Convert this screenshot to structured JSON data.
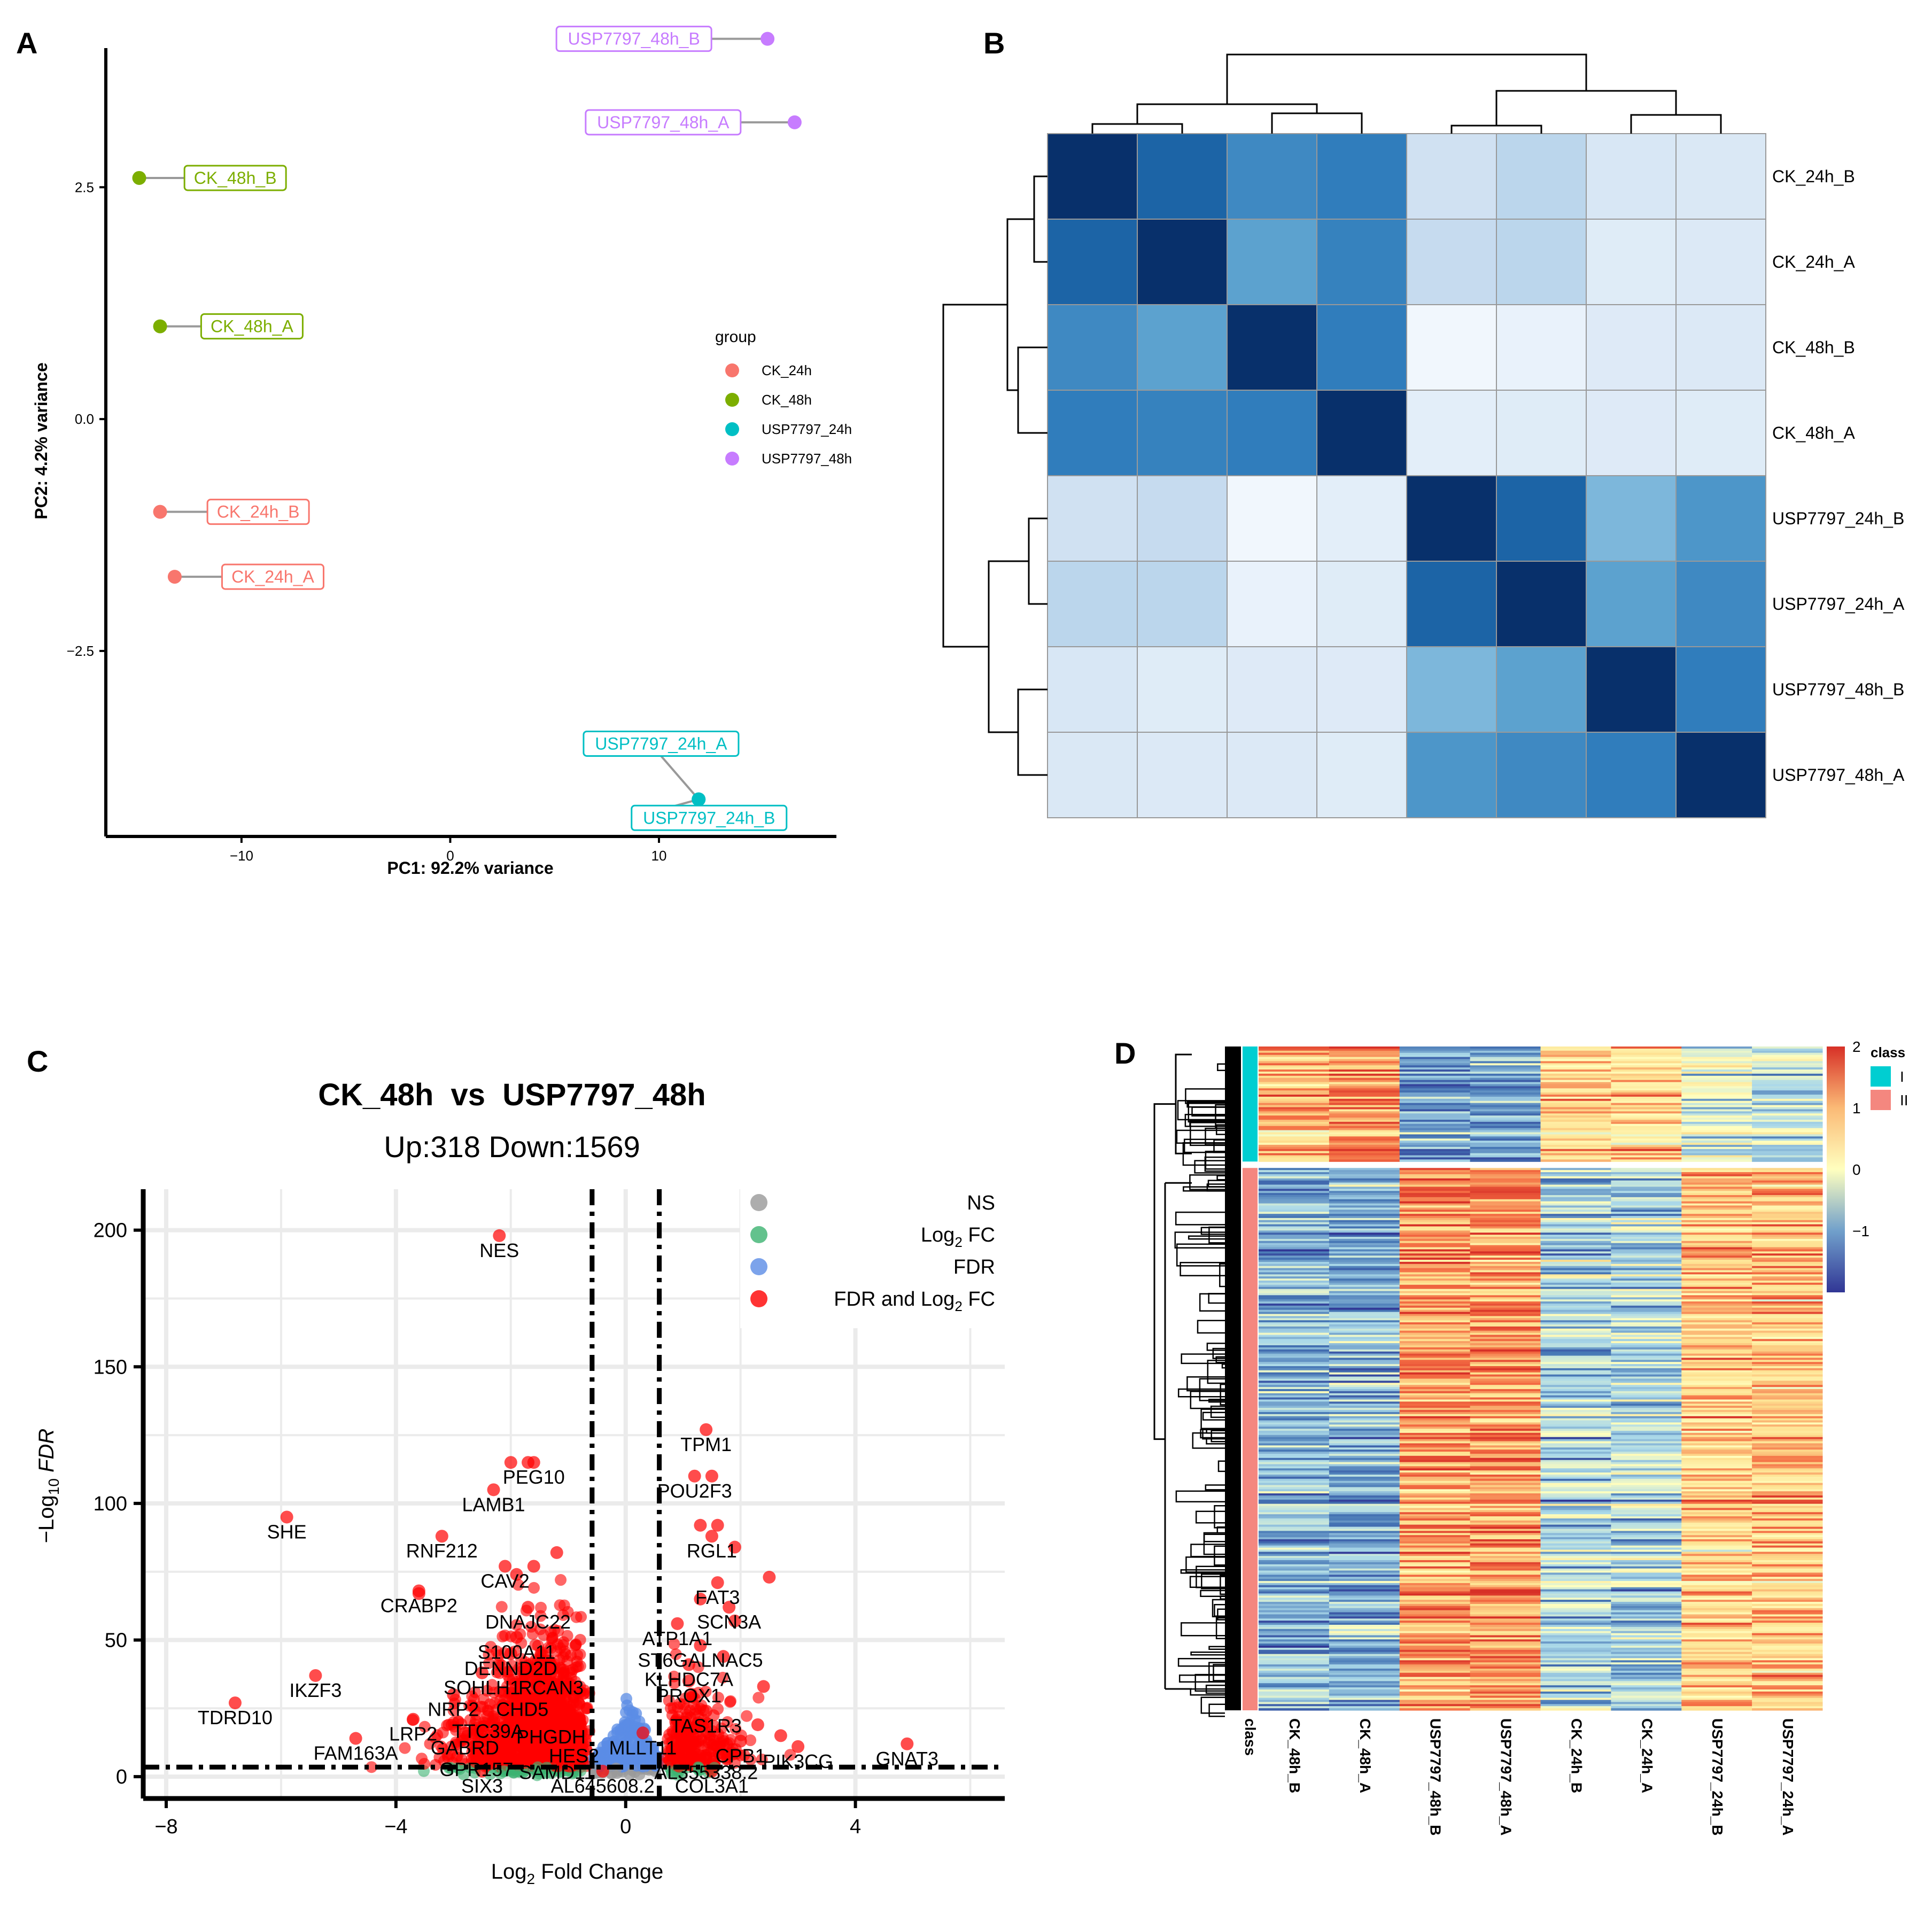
{
  "panel_letters": {
    "a": "A",
    "b": "B",
    "c": "C",
    "d": "D"
  },
  "colors": {
    "ck24": "#F8766D",
    "ck48": "#7CAE00",
    "usp24": "#00BFC4",
    "usp48": "#C77CFF",
    "ns": "#999999",
    "log2fc": "#3CB371",
    "fdr": "#5B8CE6",
    "fdr_and_fc": "#FF0000",
    "class_I": "#00CED1",
    "class_II": "#F4877F"
  },
  "chart_data": [
    {
      "id": "A",
      "type": "scatter",
      "xlabel": "PC1: 92.2% variance",
      "ylabel": "PC2: 4.2% variance",
      "xlim": [
        -16.5,
        18.5
      ],
      "ylim": [
        -4.5,
        4.0
      ],
      "xticks": [
        {
          "v": -10,
          "label": "−10"
        },
        {
          "v": 0,
          "label": "0"
        },
        {
          "v": 10,
          "label": "10"
        }
      ],
      "yticks": [
        {
          "v": 2.5,
          "label": "2.5"
        },
        {
          "v": 0,
          "label": "0.0"
        },
        {
          "v": -2.5,
          "label": "−2.5"
        }
      ],
      "legend_title": "group",
      "legend_position": "right",
      "groups": [
        {
          "name": "CK_24h",
          "color": "#F8766D"
        },
        {
          "name": "CK_48h",
          "color": "#7CAE00"
        },
        {
          "name": "USP7797_24h",
          "color": "#00BFC4"
        },
        {
          "name": "USP7797_48h",
          "color": "#C77CFF"
        }
      ],
      "points": [
        {
          "label": "USP7797_48h_B",
          "group": 3,
          "x": 15.2,
          "y": 4.1,
          "lx": 8.8,
          "ly": 4.1
        },
        {
          "label": "USP7797_48h_A",
          "group": 3,
          "x": 16.5,
          "y": 3.2,
          "lx": 10.2,
          "ly": 3.2
        },
        {
          "label": "CK_48h_B",
          "group": 1,
          "x": -14.9,
          "y": 2.6,
          "lx": -10.3,
          "ly": 2.6
        },
        {
          "label": "CK_48h_A",
          "group": 1,
          "x": -13.9,
          "y": 1.0,
          "lx": -9.5,
          "ly": 1.0
        },
        {
          "label": "CK_24h_B",
          "group": 0,
          "x": -13.9,
          "y": -1.0,
          "lx": -9.2,
          "ly": -1.0
        },
        {
          "label": "CK_24h_A",
          "group": 0,
          "x": -13.2,
          "y": -1.7,
          "lx": -8.5,
          "ly": -1.7
        },
        {
          "label": "USP7797_24h_A",
          "group": 2,
          "x": 11.9,
          "y": -4.1,
          "lx": 10.1,
          "ly": -3.5
        },
        {
          "label": "USP7797_24h_B",
          "group": 2,
          "x": 11.9,
          "y": -4.1,
          "lx": 12.4,
          "ly": -4.3
        }
      ]
    },
    {
      "id": "B",
      "type": "heatmap",
      "labels": [
        "CK_24h_B",
        "CK_24h_A",
        "CK_48h_B",
        "CK_48h_A",
        "USP7797_24h_B",
        "USP7797_24h_A",
        "USP7797_48h_B",
        "USP7797_48h_A"
      ],
      "matrix": [
        [
          1.0,
          0.8,
          0.65,
          0.7,
          0.2,
          0.28,
          0.16,
          0.15
        ],
        [
          0.8,
          1.0,
          0.55,
          0.68,
          0.25,
          0.28,
          0.12,
          0.14
        ],
        [
          0.65,
          0.55,
          1.0,
          0.7,
          0.03,
          0.07,
          0.13,
          0.14
        ],
        [
          0.7,
          0.68,
          0.7,
          1.0,
          0.1,
          0.12,
          0.13,
          0.12
        ],
        [
          0.2,
          0.25,
          0.03,
          0.1,
          1.0,
          0.8,
          0.45,
          0.6
        ],
        [
          0.28,
          0.28,
          0.07,
          0.12,
          0.8,
          1.0,
          0.55,
          0.65
        ],
        [
          0.16,
          0.12,
          0.13,
          0.13,
          0.45,
          0.55,
          1.0,
          0.7
        ],
        [
          0.15,
          0.14,
          0.14,
          0.12,
          0.6,
          0.65,
          0.7,
          1.0
        ]
      ]
    },
    {
      "id": "C",
      "type": "scatter",
      "title": "CK_48h  vs  USP7797_48h",
      "subtitle": "Up:318 Down:1569",
      "xlabel_prefix": "Log",
      "xlabel_sub": "2",
      "xlabel_suffix": " Fold Change",
      "ylabel_prefix": "−Log",
      "ylabel_sub": "10",
      "ylabel_suffix": " FDR",
      "xlim": [
        -8.4,
        6.6
      ],
      "ylim": [
        -8,
        215
      ],
      "xticks": [
        {
          "v": -8,
          "label": "−8"
        },
        {
          "v": -4,
          "label": "−4"
        },
        {
          "v": 0,
          "label": "0"
        },
        {
          "v": 4,
          "label": "4"
        }
      ],
      "yticks": [
        {
          "v": 0,
          "label": "0"
        },
        {
          "v": 50,
          "label": "50"
        },
        {
          "v": 100,
          "label": "100"
        },
        {
          "v": 150,
          "label": "150"
        },
        {
          "v": 200,
          "label": "200"
        }
      ],
      "fc_cutoffs": [
        -0.585,
        0.585
      ],
      "fdr_cutoff": 3.5,
      "legend_position": "top-right",
      "legend": [
        {
          "label": "NS",
          "color": "#999999",
          "sub": "",
          "tail": ""
        },
        {
          "label": "Log",
          "color": "#3CB371",
          "sub": "2",
          "tail": " FC"
        },
        {
          "label": "FDR",
          "color": "#5B8CE6",
          "sub": "",
          "tail": ""
        },
        {
          "label": "FDR and Log",
          "color": "#FF0000",
          "sub": "2",
          "tail": " FC"
        }
      ],
      "up_count": 318,
      "down_count": 1569,
      "genes": [
        {
          "name": "NES",
          "x": -2.2,
          "y": 198
        },
        {
          "name": "TPM1",
          "x": 1.4,
          "y": 127
        },
        {
          "name": "PEG10",
          "x": -1.6,
          "y": 115
        },
        {
          "name": "LAMB1",
          "x": -2.3,
          "y": 105
        },
        {
          "name": "POU2F3",
          "x": 1.2,
          "y": 110
        },
        {
          "name": "SHE",
          "x": -5.9,
          "y": 95
        },
        {
          "name": "RNF212",
          "x": -3.2,
          "y": 88
        },
        {
          "name": "RGL1",
          "x": 1.5,
          "y": 88
        },
        {
          "name": "CAV2",
          "x": -2.1,
          "y": 77
        },
        {
          "name": "FAT3",
          "x": 1.6,
          "y": 71
        },
        {
          "name": "CRABP2",
          "x": -3.6,
          "y": 68
        },
        {
          "name": "DNAJC22",
          "x": -1.7,
          "y": 62
        },
        {
          "name": "SCN3A",
          "x": 1.8,
          "y": 62
        },
        {
          "name": "ATP1A1",
          "x": 0.9,
          "y": 56
        },
        {
          "name": "S100A11",
          "x": -1.9,
          "y": 51
        },
        {
          "name": "ST6GALNAC5",
          "x": 1.3,
          "y": 48
        },
        {
          "name": "DENND2D",
          "x": -2.0,
          "y": 45
        },
        {
          "name": "KLHDC7A",
          "x": 1.1,
          "y": 41
        },
        {
          "name": "SOHLH1",
          "x": -2.5,
          "y": 38
        },
        {
          "name": "RCAN3",
          "x": -1.3,
          "y": 38
        },
        {
          "name": "PROX1",
          "x": 1.1,
          "y": 35
        },
        {
          "name": "IKZF3",
          "x": -5.4,
          "y": 37
        },
        {
          "name": "NRP2",
          "x": -3.0,
          "y": 30
        },
        {
          "name": "CHD5",
          "x": -1.8,
          "y": 30
        },
        {
          "name": "TDRD10",
          "x": -6.8,
          "y": 27
        },
        {
          "name": "TAS1R3",
          "x": 1.4,
          "y": 24
        },
        {
          "name": "TTC39A",
          "x": -2.4,
          "y": 22
        },
        {
          "name": "LRP2",
          "x": -3.7,
          "y": 21
        },
        {
          "name": "PHGDH",
          "x": -1.3,
          "y": 20
        },
        {
          "name": "MLLT11",
          "x": 0.3,
          "y": 16
        },
        {
          "name": "GABRD",
          "x": -2.8,
          "y": 16
        },
        {
          "name": "HES2",
          "x": -0.9,
          "y": 13
        },
        {
          "name": "CPB1",
          "x": 2.0,
          "y": 13
        },
        {
          "name": "FAM163A",
          "x": -4.7,
          "y": 14
        },
        {
          "name": "PIK3CG",
          "x": 3.0,
          "y": 11
        },
        {
          "name": "GNAT3",
          "x": 4.9,
          "y": 12
        },
        {
          "name": "GPR157",
          "x": -2.6,
          "y": 8
        },
        {
          "name": "SAMD11",
          "x": -1.2,
          "y": 7
        },
        {
          "name": "AL355338.2",
          "x": 1.4,
          "y": 7
        },
        {
          "name": "SIX3",
          "x": -2.5,
          "y": 2
        },
        {
          "name": "AL645608.2",
          "x": -0.4,
          "y": 2
        },
        {
          "name": "COL3A1",
          "x": 1.5,
          "y": 2
        }
      ]
    },
    {
      "id": "D",
      "type": "heatmap",
      "columns": [
        "CK_48h_B",
        "CK_48h_A",
        "USP7797_48h_B",
        "USP7797_48h_A",
        "CK_24h_B",
        "CK_24h_A",
        "USP7797_24h_B",
        "USP7797_24h_A"
      ],
      "annotation_label": "class",
      "classes": [
        {
          "name": "I",
          "fraction": 0.175
        },
        {
          "name": "II",
          "fraction": 0.825
        }
      ],
      "cluster_means": {
        "I": [
          1.0,
          1.2,
          -1.0,
          -1.0,
          0.8,
          0.7,
          -0.2,
          -0.4
        ],
        "II": [
          -0.9,
          -0.9,
          1.2,
          1.25,
          -0.6,
          -0.6,
          0.8,
          0.9
        ]
      },
      "legend_title": "class",
      "scale": {
        "min": -2,
        "max": 2,
        "ticks": [
          {
            "v": 2,
            "label": "2"
          },
          {
            "v": 1,
            "label": "1"
          },
          {
            "v": 0,
            "label": "0"
          },
          {
            "v": -1,
            "label": "−1"
          }
        ]
      },
      "class_legend": [
        {
          "label": "I",
          "color": "#00CED1"
        },
        {
          "label": "II",
          "color": "#F4877F"
        }
      ]
    }
  ]
}
